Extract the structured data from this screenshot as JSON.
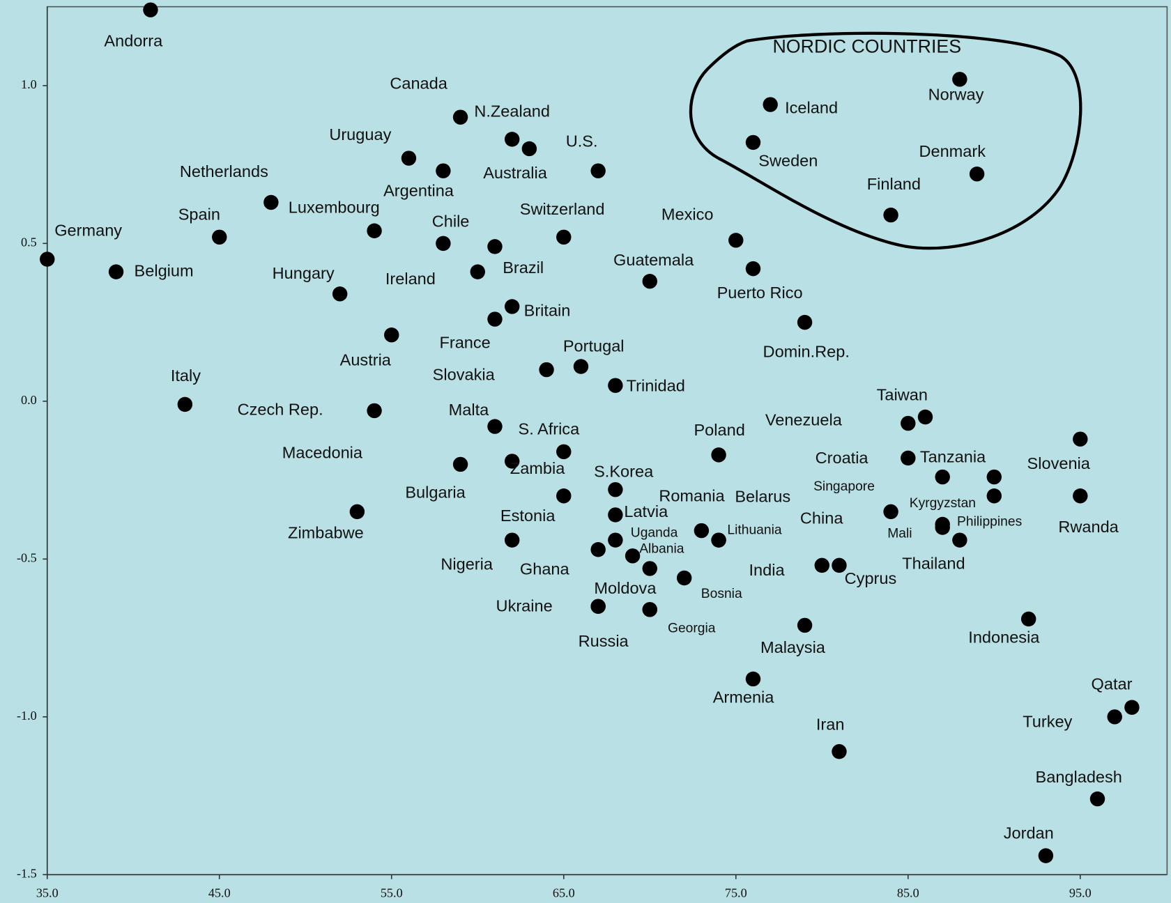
{
  "chart_data": {
    "type": "scatter",
    "annotations": [
      "NORDIC COUNTRIES"
    ],
    "labels": [
      "Andorra",
      "Germany",
      "Belgium",
      "Spain",
      "Netherlands",
      "Luxembourg",
      "Hungary",
      "Austria",
      "Italy",
      "Czech Rep.",
      "Macedonia",
      "Zimbabwe",
      "Uruguay",
      "Argentina",
      "Canada",
      "N.Zealand",
      "Australia",
      "U.S.",
      "Chile",
      "Switzerland",
      "Brazil",
      "Ireland",
      "Britain",
      "France",
      "Slovakia",
      "Portugal",
      "Trinidad",
      "Malta",
      "S. Africa",
      "Zambia",
      "Bulgaria",
      "S.Korea",
      "Latvia",
      "Estonia",
      "Uganda",
      "Albania",
      "Nigeria",
      "Ghana",
      "Moldova",
      "Ukraine",
      "Russia",
      "Georgia",
      "Bosnia",
      "Guatemala",
      "Mexico",
      "Puerto Rico",
      "Domin.Rep.",
      "Poland",
      "Romania",
      "Belarus",
      "Lithuania",
      "Venezuela",
      "Taiwan",
      "Croatia",
      "Tanzania",
      "Singapore",
      "Kyrgyzstan",
      "Mali",
      "Philippines",
      "Thailand",
      "China",
      "India",
      "Cyprus",
      "Malaysia",
      "Armenia",
      "Iran",
      "Indonesia",
      "Slovenia",
      "Rwanda",
      "Qatar",
      "Turkey",
      "Bangladesh",
      "Jordan",
      "Iceland",
      "Sweden",
      "Norway",
      "Denmark",
      "Finland"
    ],
    "x": [
      41,
      35,
      39,
      45,
      48,
      54,
      52,
      55,
      43,
      54,
      59,
      53,
      56,
      58,
      59,
      62,
      63,
      67,
      58,
      65,
      61,
      60,
      62,
      61,
      64,
      66,
      68,
      61,
      65,
      62,
      65,
      68,
      68,
      62,
      68,
      69,
      67,
      70,
      70,
      67,
      67,
      70,
      72,
      70,
      75,
      76,
      79,
      74,
      73,
      74,
      74,
      85,
      86,
      87,
      85,
      90,
      90,
      84,
      87,
      88,
      87,
      80,
      81,
      79,
      76,
      81,
      92,
      95,
      95,
      98,
      97,
      96,
      93,
      77,
      76,
      88,
      89,
      84
    ],
    "values": [
      1.24,
      0.45,
      0.41,
      0.52,
      0.63,
      0.54,
      0.34,
      0.21,
      -0.01,
      -0.03,
      -0.2,
      -0.35,
      0.77,
      0.73,
      0.9,
      0.83,
      0.8,
      0.73,
      0.5,
      0.52,
      0.49,
      0.41,
      0.3,
      0.26,
      0.1,
      0.11,
      0.05,
      -0.08,
      -0.16,
      -0.19,
      -0.3,
      -0.28,
      -0.36,
      -0.44,
      -0.44,
      -0.49,
      -0.47,
      -0.53,
      -0.66,
      -0.65,
      -0.65,
      -0.66,
      -0.56,
      0.38,
      0.51,
      0.42,
      0.25,
      -0.17,
      -0.41,
      -0.44,
      -0.44,
      -0.07,
      -0.05,
      -0.24,
      -0.18,
      -0.3,
      -0.24,
      -0.35,
      -0.39,
      -0.44,
      -0.4,
      -0.52,
      -0.52,
      -0.71,
      -0.88,
      -1.11,
      -0.69,
      -0.12,
      -0.3,
      -0.97,
      -1.0,
      -1.26,
      -1.44,
      0.94,
      0.82,
      1.02,
      0.72,
      0.59
    ],
    "color": "#000000",
    "xlim": [
      35,
      100
    ],
    "ylim": [
      -1.5,
      1.25
    ],
    "xticks": [
      {
        "value": 35,
        "label": "35.0"
      },
      {
        "value": 45,
        "label": "45.0"
      },
      {
        "value": 55,
        "label": "55.0"
      },
      {
        "value": 65,
        "label": "65.0"
      },
      {
        "value": 75,
        "label": "75.0"
      },
      {
        "value": 85,
        "label": "85.0"
      },
      {
        "value": 95,
        "label": "95.0"
      }
    ],
    "yticks": [
      {
        "value": -1.5,
        "label": "-1.5"
      },
      {
        "value": -1,
        "label": "-1.0"
      },
      {
        "value": -0.5,
        "label": "-0.5"
      },
      {
        "value": 0,
        "label": "0.0"
      },
      {
        "value": 0.5,
        "label": "0.5"
      },
      {
        "value": 1,
        "label": "1.0"
      }
    ]
  }
}
